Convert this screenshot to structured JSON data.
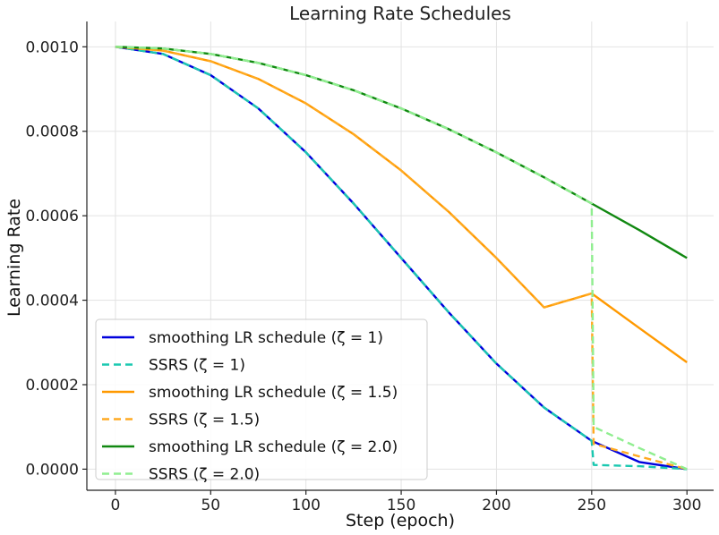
{
  "chart_data": {
    "type": "line",
    "title": "Learning Rate Schedules",
    "xlabel": "Step (epoch)",
    "ylabel": "Learning Rate",
    "xlim": [
      -15,
      314
    ],
    "ylim": [
      -5e-05,
      0.00106
    ],
    "grid": true,
    "legend_position": "bottom-left",
    "x_ticks": [
      0,
      50,
      100,
      150,
      200,
      250,
      300
    ],
    "x_tick_labels": [
      "0",
      "50",
      "100",
      "150",
      "200",
      "250",
      "300"
    ],
    "y_ticks": [
      0.0,
      0.0002,
      0.0004,
      0.0006,
      0.0008,
      0.001
    ],
    "y_tick_labels": [
      "0.0000",
      "0.0002",
      "0.0004",
      "0.0006",
      "0.0008",
      "0.0010"
    ],
    "series": [
      {
        "name": "smoothing LR schedule (ζ = 1)",
        "color": "#0000dd",
        "dash": "solid",
        "x": [
          0,
          25,
          50,
          75,
          100,
          125,
          150,
          175,
          200,
          225,
          250,
          275,
          300
        ],
        "y": [
          0.001,
          0.000983,
          0.000933,
          0.000854,
          0.00075,
          0.000629,
          0.0005,
          0.000371,
          0.00025,
          0.000146,
          6.7e-05,
          1.7e-05,
          0.0
        ]
      },
      {
        "name": "SSRS (ζ = 1)",
        "color": "#1ac8b0",
        "dash": "dashed",
        "x": [
          0,
          25,
          50,
          75,
          100,
          125,
          150,
          175,
          200,
          225,
          250,
          251,
          275,
          300
        ],
        "y": [
          0.001,
          0.000983,
          0.000933,
          0.000854,
          0.00075,
          0.000629,
          0.0005,
          0.000371,
          0.00025,
          0.000146,
          6.7e-05,
          1e-05,
          7e-06,
          0.0
        ]
      },
      {
        "name": "smoothing LR schedule (ζ = 1.5)",
        "color": "#ff9900",
        "dash": "solid",
        "x": [
          0,
          25,
          50,
          75,
          100,
          125,
          150,
          175,
          200,
          225,
          250,
          275,
          300
        ],
        "y": [
          0.001,
          0.000991,
          0.000966,
          0.000924,
          0.000866,
          0.000793,
          0.000707,
          0.000609,
          0.0005,
          0.000383,
          0.000416,
          0.000334,
          0.000253
        ]
      },
      {
        "name": "SSRS (ζ = 1.5)",
        "color": "#ffaa22",
        "dash": "dashed",
        "x": [
          0,
          25,
          50,
          75,
          100,
          125,
          150,
          175,
          200,
          225,
          250,
          251,
          275,
          300
        ],
        "y": [
          0.001,
          0.000991,
          0.000966,
          0.000924,
          0.000866,
          0.000793,
          0.000707,
          0.000609,
          0.0005,
          0.000383,
          0.000416,
          6e-05,
          3e-05,
          0.0
        ]
      },
      {
        "name": "smoothing LR schedule (ζ = 2.0)",
        "color": "#118811",
        "dash": "solid",
        "x": [
          0,
          25,
          50,
          75,
          100,
          125,
          150,
          175,
          200,
          225,
          250,
          275,
          300
        ],
        "y": [
          0.001,
          0.000996,
          0.000983,
          0.000962,
          0.000933,
          0.000897,
          0.000854,
          0.000805,
          0.00075,
          0.000691,
          0.000629,
          0.000566,
          0.0005
        ]
      },
      {
        "name": "SSRS (ζ = 2.0)",
        "color": "#90ee90",
        "dash": "dashed",
        "x": [
          0,
          25,
          50,
          75,
          100,
          125,
          150,
          175,
          200,
          225,
          250,
          251,
          275,
          300
        ],
        "y": [
          0.001,
          0.000996,
          0.000983,
          0.000962,
          0.000933,
          0.000897,
          0.000854,
          0.000805,
          0.00075,
          0.000691,
          0.000629,
          0.0001,
          5e-05,
          0.0
        ]
      }
    ]
  }
}
